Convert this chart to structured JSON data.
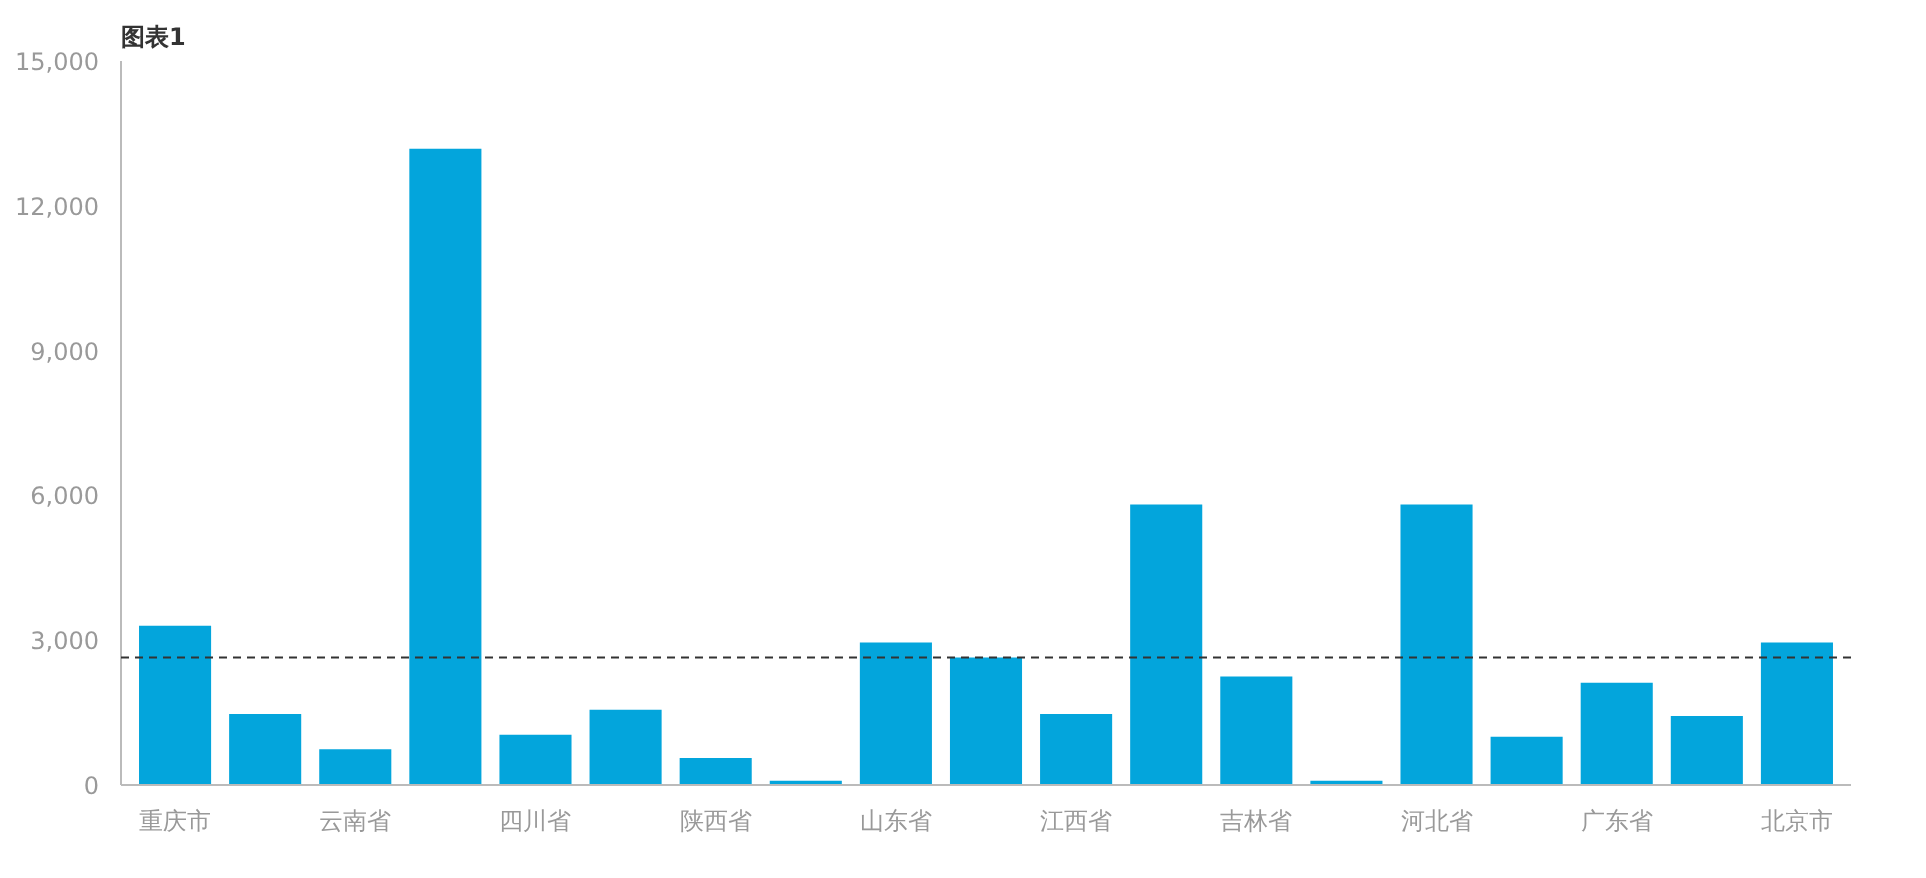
{
  "chart_data": {
    "type": "bar",
    "title": "图表1",
    "categories": [
      "重庆市",
      null,
      "云南省",
      null,
      "四川省",
      null,
      "陕西省",
      null,
      "山东省",
      null,
      "江西省",
      null,
      "吉林省",
      null,
      "河北省",
      null,
      "广东省",
      null,
      "北京市"
    ],
    "values": [
      3300,
      1470,
      740,
      13180,
      1040,
      1560,
      560,
      90,
      2950,
      2640,
      1470,
      5810,
      2250,
      90,
      5810,
      1000,
      2120,
      1430,
      2950
    ],
    "color": "#03a5dc",
    "ylim": [
      0,
      15000
    ],
    "yticks": [
      {
        "value": 0,
        "label": "0"
      },
      {
        "value": 3000,
        "label": "3,000"
      },
      {
        "value": 6000,
        "label": "6,000"
      },
      {
        "value": 9000,
        "label": "9,000"
      },
      {
        "value": 12000,
        "label": "12,000"
      },
      {
        "value": 15000,
        "label": "15,000"
      }
    ],
    "ref_lines": [
      {
        "axis": "y",
        "value": 2640,
        "color": "#333333",
        "line_style": "dashed"
      }
    ],
    "grid": false
  }
}
